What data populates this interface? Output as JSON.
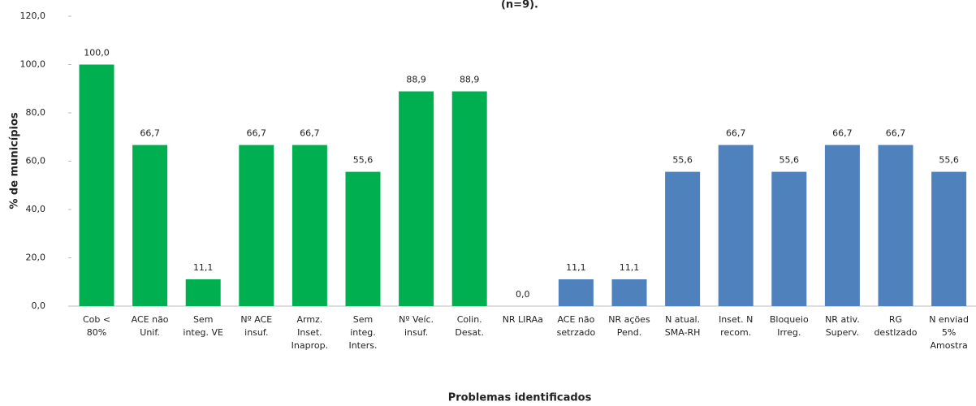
{
  "chart_data": {
    "type": "bar",
    "title": "(n=9).",
    "y_label": "% de municípios",
    "x_label": "Problemas identificados",
    "categories": [
      "Cob <\n80%",
      "ACE não\nUnif.",
      "Sem\ninteg. VE",
      "Nº ACE\ninsuf.",
      "Armz.\nInset.\nInaprop.",
      "Sem\ninteg.\nInters.",
      "Nº Veíc.\ninsuf.",
      "Colin.\nDesat.",
      "NR LIRAa",
      "ACE não\nsetrzado",
      "NR ações\nPend.",
      "N atual.\nSMA-RH",
      "Inset. N\nrecom.",
      "Bloqueio\nIrreg.",
      "NR ativ.\nSuperv.",
      "RG\ndestlzado",
      "N enviad\n5%\nAmostra"
    ],
    "values": [
      100.0,
      66.7,
      11.1,
      66.7,
      66.7,
      55.6,
      88.9,
      88.9,
      0.0,
      11.1,
      11.1,
      55.6,
      66.7,
      55.6,
      66.7,
      66.7,
      55.6
    ],
    "value_labels": [
      "100,0",
      "66,7",
      "11,1",
      "66,7",
      "66,7",
      "55,6",
      "88,9",
      "88,9",
      "0,0",
      "11,1",
      "11,1",
      "55,6",
      "66,7",
      "55,6",
      "66,7",
      "66,7",
      "55,6"
    ],
    "colors": [
      "#00b050",
      "#00b050",
      "#00b050",
      "#00b050",
      "#00b050",
      "#00b050",
      "#00b050",
      "#00b050",
      "#4f81bd",
      "#4f81bd",
      "#4f81bd",
      "#4f81bd",
      "#4f81bd",
      "#4f81bd",
      "#4f81bd",
      "#4f81bd",
      "#4f81bd"
    ],
    "ylim": [
      0,
      120
    ],
    "yticks": [
      {
        "value": 0,
        "label": "0,0"
      },
      {
        "value": 20,
        "label": "20,0"
      },
      {
        "value": 40,
        "label": "40,0"
      },
      {
        "value": 60,
        "label": "60,0"
      },
      {
        "value": 80,
        "label": "80,0"
      },
      {
        "value": 100,
        "label": "100,0"
      },
      {
        "value": 120,
        "label": "120,0"
      }
    ]
  }
}
